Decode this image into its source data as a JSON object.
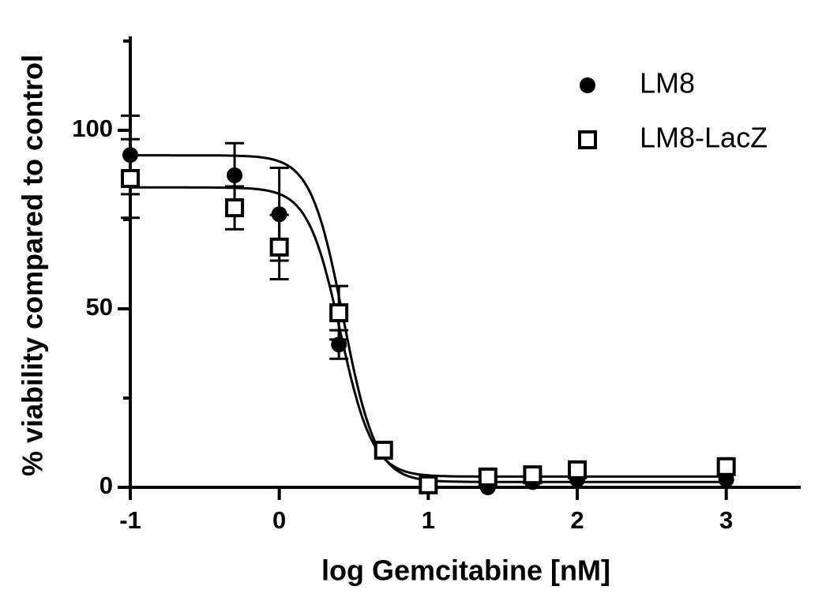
{
  "chart_data": {
    "type": "scatter",
    "x_label": "log Gemcitabine [nM]",
    "y_label": "% viability compared to control",
    "x": [
      -1,
      -0.3,
      0,
      0.4,
      0.7,
      1,
      1.4,
      1.7,
      2,
      3
    ],
    "series": [
      {
        "name": "LM8",
        "marker": "filled-circle",
        "color": "#000000",
        "values": [
          93.1,
          87.4,
          76.5,
          40,
          10,
          0.9,
          0,
          1.5,
          2.2,
          2.2
        ],
        "errors": [
          11,
          9,
          13,
          4,
          null,
          null,
          null,
          null,
          null,
          null
        ],
        "fit": {
          "top": 93,
          "bottom": 1.5,
          "log_ic50": 0.43,
          "hill": 4
        }
      },
      {
        "name": "LM8-LacZ",
        "marker": "open-square",
        "color": "#000000",
        "values": [
          86.5,
          78.3,
          67.3,
          48.9,
          10.4,
          0.7,
          2.9,
          3.5,
          4.9,
          5.8
        ],
        "errors": [
          11,
          6,
          9,
          7.5,
          null,
          null,
          null,
          null,
          null,
          null
        ],
        "fit": {
          "top": 84,
          "bottom": 3,
          "log_ic50": 0.41,
          "hill": 4
        }
      }
    ],
    "xlim": [
      -1,
      3.5
    ],
    "xticks": [
      -1,
      0,
      1,
      2,
      3
    ],
    "ylim": [
      0,
      125
    ],
    "yticks": [
      0,
      50,
      100
    ],
    "yminorticks": [
      25,
      75,
      125
    ],
    "legend": "top-right",
    "grid": false
  }
}
